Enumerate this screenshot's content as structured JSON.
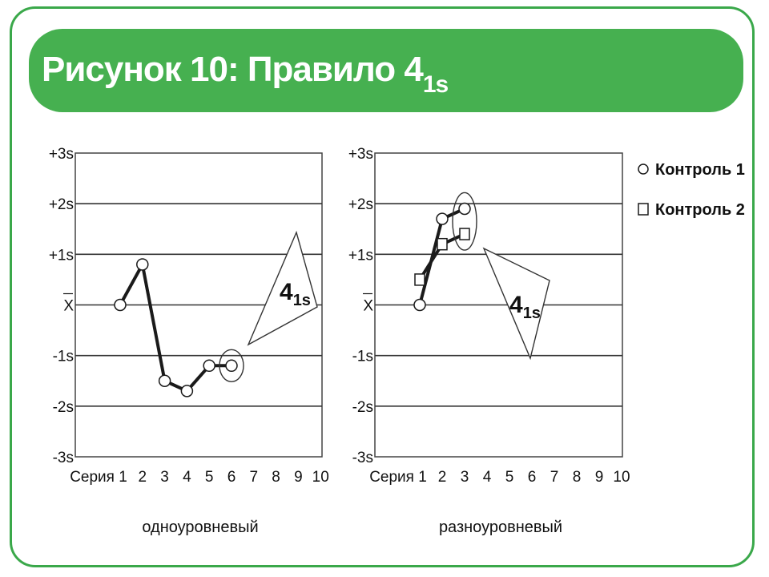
{
  "header": {
    "title_main": "Рисунок 10: Правило 4",
    "title_sub": "1s",
    "color": "#46b050"
  },
  "legend": [
    {
      "marker": "circle",
      "label": "Контроль 1"
    },
    {
      "marker": "square",
      "label": "Контроль 2"
    }
  ],
  "chart_data": [
    {
      "type": "line",
      "caption": "одноуровневый",
      "y_tick_labels": [
        "+3s",
        "+2s",
        "+1s",
        "X",
        "-1s",
        "-2s",
        "-3s"
      ],
      "x_tick_labels": [
        "Серия 1",
        "2",
        "3",
        "4",
        "5",
        "6",
        "7",
        "8",
        "9",
        "10"
      ],
      "ylim": [
        -3,
        3
      ],
      "xlim": [
        1,
        10
      ],
      "grid": true,
      "series": [
        {
          "marker": "circle",
          "x": [
            1,
            2,
            3,
            4,
            5,
            6
          ],
          "y": [
            0,
            0.8,
            -1.5,
            -1.7,
            -1.2,
            -1.2
          ]
        }
      ],
      "highlight_x": 6,
      "callout": {
        "main": "4",
        "sub": "1s"
      }
    },
    {
      "type": "line",
      "caption": "разноуровневый",
      "y_tick_labels": [
        "+3s",
        "+2s",
        "+1s",
        "X",
        "-1s",
        "-2s",
        "-3s"
      ],
      "x_tick_labels": [
        "Серия 1",
        "2",
        "3",
        "4",
        "5",
        "6",
        "7",
        "8",
        "9",
        "10"
      ],
      "ylim": [
        -3,
        3
      ],
      "xlim": [
        1,
        10
      ],
      "grid": true,
      "series": [
        {
          "name": "Контроль 1",
          "marker": "circle",
          "x": [
            1,
            2,
            3
          ],
          "y": [
            0,
            1.7,
            1.9
          ]
        },
        {
          "name": "Контроль 2",
          "marker": "square",
          "x": [
            1,
            2,
            3
          ],
          "y": [
            0.5,
            1.2,
            1.4
          ]
        }
      ],
      "highlight_x": 3,
      "callout": {
        "main": "4",
        "sub": "1s"
      }
    }
  ]
}
